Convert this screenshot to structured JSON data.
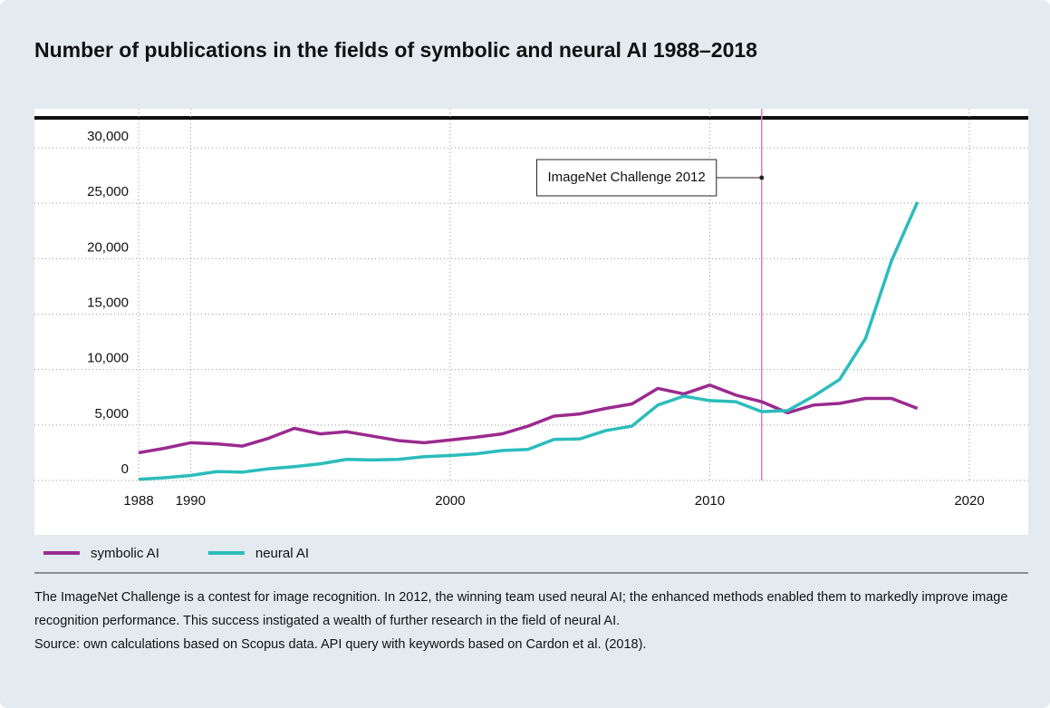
{
  "chart_data": {
    "type": "line",
    "title": "Number of publications in the fields of symbolic and neural AI 1988–2018",
    "x": [
      1988,
      1989,
      1990,
      1991,
      1992,
      1993,
      1994,
      1995,
      1996,
      1997,
      1998,
      1999,
      2000,
      2001,
      2002,
      2003,
      2004,
      2005,
      2006,
      2007,
      2008,
      2009,
      2010,
      2011,
      2012,
      2013,
      2014,
      2015,
      2016,
      2017,
      2018
    ],
    "series": [
      {
        "name": "symbolic AI",
        "color": "#9b2a8f",
        "values": [
          2500,
          2900,
          3400,
          3300,
          3100,
          3800,
          4700,
          4200,
          4400,
          4000,
          3600,
          3400,
          3650,
          3900,
          4200,
          4900,
          5800,
          6000,
          6500,
          6900,
          8300,
          7800,
          8600,
          7700,
          7100,
          6100,
          6800,
          6950,
          7400,
          7400,
          6500
        ]
      },
      {
        "name": "neural AI",
        "color": "#2bbcbc",
        "values": [
          100,
          250,
          450,
          800,
          750,
          1050,
          1250,
          1500,
          1900,
          1850,
          1900,
          2150,
          2250,
          2400,
          2700,
          2800,
          3700,
          3750,
          4500,
          4900,
          6800,
          7600,
          7200,
          7100,
          6200,
          6300,
          7600,
          9100,
          12800,
          19800,
          25100
        ]
      }
    ],
    "xlim": [
      1988,
      2020
    ],
    "xticks": [
      1988,
      1990,
      2000,
      2010,
      2020
    ],
    "ylim": [
      0,
      30000
    ],
    "yticks": [
      0,
      {
        "value": 5000,
        "label": "5,000"
      },
      {
        "value": 10000,
        "label": "10,000"
      },
      {
        "value": 15000,
        "label": "15,000"
      },
      {
        "value": 20000,
        "label": "20,000"
      },
      {
        "value": 25000,
        "label": "25,000"
      },
      {
        "value": 30000,
        "label": "30,000"
      }
    ],
    "grid": true,
    "annotation": {
      "text": "ImageNet Challenge 2012",
      "x": 2012,
      "y": 27300,
      "color": "#e07acc"
    },
    "note": "The ImageNet Challenge is a contest for image recognition. In 2012, the winning team used neural AI; the enhanced methods enabled them to markedly improve image recognition performance. This success instigated a wealth of further research in the field of neural AI.",
    "source": "Source: own calculations based on Scopus data. API query with keywords based on Cardon et al. (2018)."
  }
}
